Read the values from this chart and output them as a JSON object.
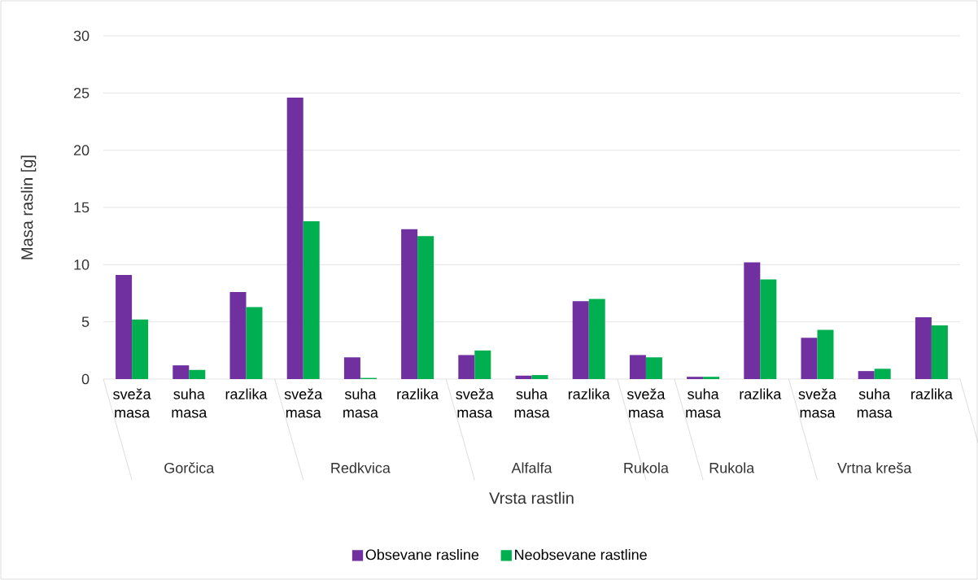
{
  "chart_data": {
    "type": "bar",
    "xlabel": "Vrsta rastlin",
    "ylabel": "Masa raslin [g]",
    "categories": [
      "sveža masa",
      "suha masa",
      "razlika",
      "sveža masa",
      "suha masa",
      "razlika",
      "sveža masa",
      "suha masa",
      "razlika",
      "sveža masa",
      "suha masa",
      "razlika",
      "sveža masa",
      "suha masa",
      "razlika"
    ],
    "annotations": [
      "Gorčica",
      "Redkvica",
      "Alfalfa",
      "Rukola",
      "Rukola",
      "Vrtna kreša"
    ],
    "series": [
      {
        "name": "Obsevane rasline",
        "color": "#7030a0",
        "values": [
          9.1,
          1.2,
          7.6,
          24.6,
          1.9,
          13.1,
          2.1,
          0.3,
          6.8,
          2.1,
          0.2,
          10.2,
          3.6,
          0.7,
          5.4
        ]
      },
      {
        "name": "Neobsevane rastline",
        "color": "#00b050",
        "values": [
          5.2,
          0.8,
          6.3,
          13.8,
          0.1,
          12.5,
          2.5,
          0.35,
          7.0,
          1.9,
          0.2,
          8.7,
          4.3,
          0.9,
          4.7
        ]
      }
    ],
    "ylim": [
      0,
      30
    ],
    "yticks": [
      0,
      5,
      10,
      15,
      20,
      25,
      30
    ],
    "grid": "y",
    "legend": "bottom"
  }
}
